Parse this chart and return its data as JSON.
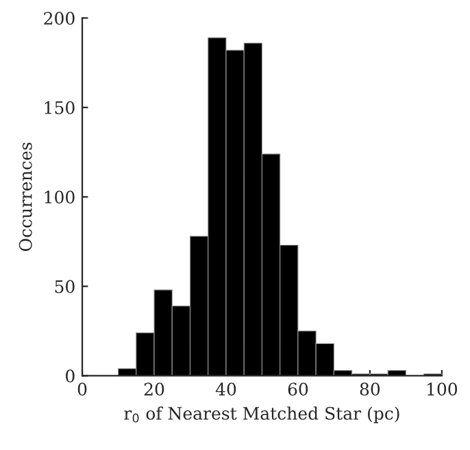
{
  "chart_data": {
    "type": "histogram",
    "xlabel": "r$_{0}$ of Nearest Matched Star (pc)",
    "ylabel": "Occurrences",
    "bins": [
      0,
      5,
      10,
      15,
      20,
      25,
      30,
      35,
      40,
      45,
      50,
      55,
      60,
      65,
      70,
      75,
      80,
      85,
      90,
      95,
      100
    ],
    "values": [
      0,
      0,
      4,
      24,
      48,
      39,
      78,
      189,
      182,
      186,
      124,
      73,
      25,
      18,
      3,
      1,
      1,
      3,
      0,
      1
    ],
    "color": "#000000",
    "xlim": [
      0,
      100
    ],
    "ylim": [
      0,
      200
    ],
    "xticks": [
      0,
      20,
      40,
      60,
      80,
      100
    ],
    "yticks": [
      0,
      50,
      100,
      150,
      200
    ],
    "grid": false,
    "legend": false
  }
}
